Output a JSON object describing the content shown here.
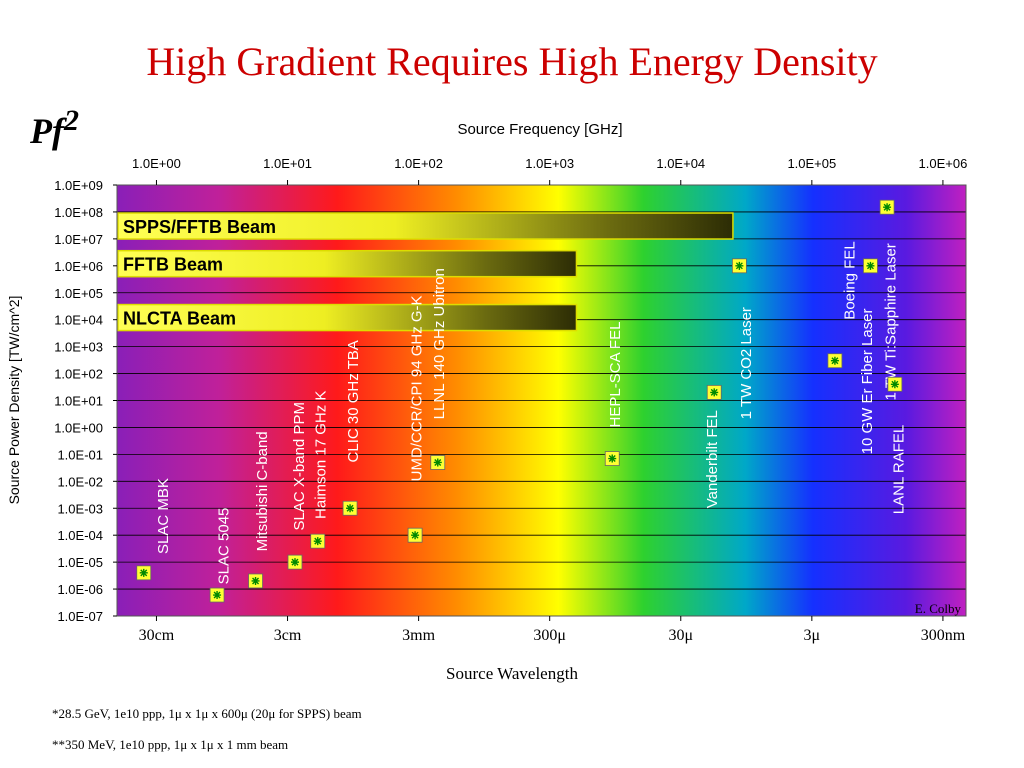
{
  "slide": {
    "title": "High Gradient Requires High Energy Density",
    "pf2": "Pf",
    "pf2_sup": "2",
    "footnote1": "*28.5 GeV, 1e10 ppp, 1μ x 1μ x 600μ (20μ for SPPS) beam",
    "footnote2": "**350 MeV, 1e10 ppp, 1μ x 1μ x 1 mm beam",
    "credit": "E. Colby"
  },
  "chart_data": {
    "type": "scatter",
    "title": "",
    "x_top_label": "Source Frequency [GHz]",
    "x_bottom_label": "Source Wavelength",
    "ylabel": "Source Power Density [TW/cm^2]",
    "x_scale": "log",
    "y_scale": "log",
    "xlim": [
      0.5,
      1500000
    ],
    "ylim": [
      1e-07,
      1000000000.0
    ],
    "grid": "horizontal",
    "background": "spectrum gradient purple-red-yellow-green-blue-purple",
    "top_ticks": [
      {
        "value": 1,
        "label": "1.0E+00"
      },
      {
        "value": 10,
        "label": "1.0E+01"
      },
      {
        "value": 100,
        "label": "1.0E+02"
      },
      {
        "value": 1000,
        "label": "1.0E+03"
      },
      {
        "value": 10000,
        "label": "1.0E+04"
      },
      {
        "value": 100000,
        "label": "1.0E+05"
      },
      {
        "value": 1000000,
        "label": "1.0E+06"
      }
    ],
    "bottom_ticks": [
      {
        "value": 1,
        "label": "30cm"
      },
      {
        "value": 10,
        "label": "3cm"
      },
      {
        "value": 100,
        "label": "3mm"
      },
      {
        "value": 1000,
        "label": "300μ"
      },
      {
        "value": 10000,
        "label": "30μ"
      },
      {
        "value": 100000,
        "label": "3μ"
      },
      {
        "value": 1000000,
        "label": "300nm"
      }
    ],
    "y_ticks": [
      {
        "value": 1000000000.0,
        "label": "1.0E+09"
      },
      {
        "value": 100000000.0,
        "label": "1.0E+08"
      },
      {
        "value": 10000000.0,
        "label": "1.0E+07"
      },
      {
        "value": 1000000.0,
        "label": "1.0E+06"
      },
      {
        "value": 100000.0,
        "label": "1.0E+05"
      },
      {
        "value": 10000.0,
        "label": "1.0E+04"
      },
      {
        "value": 1000.0,
        "label": "1.0E+03"
      },
      {
        "value": 100.0,
        "label": "1.0E+02"
      },
      {
        "value": 10.0,
        "label": "1.0E+01"
      },
      {
        "value": 1.0,
        "label": "1.0E+00"
      },
      {
        "value": 0.1,
        "label": "1.0E-01"
      },
      {
        "value": 0.01,
        "label": "1.0E-02"
      },
      {
        "value": 0.001,
        "label": "1.0E-03"
      },
      {
        "value": 0.0001,
        "label": "1.0E-04"
      },
      {
        "value": 1e-05,
        "label": "1.0E-05"
      },
      {
        "value": 1e-06,
        "label": "1.0E-06"
      },
      {
        "value": 1e-07,
        "label": "1.0E-07"
      }
    ],
    "beams": [
      {
        "label": "SPPS/FFTB Beam",
        "x_end": 25000,
        "y": 30000000.0
      },
      {
        "label": "FFTB Beam",
        "x_end": 1600,
        "y": 1200000.0
      },
      {
        "label": "NLCTA Beam",
        "x_end": 1600,
        "y": 12000.0
      }
    ],
    "points": [
      {
        "label": "SLAC MBK",
        "x": 0.8,
        "y": 4e-06
      },
      {
        "label": "SLAC 5045",
        "x": 2.9,
        "y": 6e-07
      },
      {
        "label": "Mitsubishi C-band",
        "x": 5.7,
        "y": 2e-06
      },
      {
        "label": "SLAC X-band PPM",
        "x": 11.4,
        "y": 1e-05
      },
      {
        "label": "Haimson 17 GHz K",
        "x": 17,
        "y": 6e-05
      },
      {
        "label": "CLIC 30 GHz TBA",
        "x": 30,
        "y": 0.001
      },
      {
        "label": "UMD/CCR/CPI 94 GHz G-K",
        "x": 94,
        "y": 0.0001
      },
      {
        "label": "LLNL 140 GHz Ubitron",
        "x": 140,
        "y": 0.05
      },
      {
        "label": "HEPL-SCA FEL",
        "x": 3000,
        "y": 0.07
      },
      {
        "label": "Vanderbilt FEL",
        "x": 18000,
        "y": 20.0
      },
      {
        "label": "1 TW CO2 Laser",
        "x": 28000,
        "y": 1000000.0
      },
      {
        "label": "Boeing FEL",
        "x": 150000,
        "y": 300.0
      },
      {
        "label": "10 GW Er Fiber Laser",
        "x": 280000,
        "y": 1000000.0
      },
      {
        "label": "1 TW Ti:Sapphire Laser",
        "x": 375000,
        "y": 150000000.0
      },
      {
        "label": "LANL RAFEL",
        "x": 430000,
        "y": 40.0
      }
    ],
    "annotations": [
      {
        "label": "SLAC MBK",
        "x": 1.1,
        "y_base": 2e-05
      },
      {
        "label": "SLAC 5045",
        "x": 3.2,
        "y_base": 1.5e-06
      },
      {
        "label": "Mitsubishi C-band",
        "x": 6.3,
        "y_base": 2.5e-05
      },
      {
        "label": "SLAC X-band PPM",
        "x": 12,
        "y_base": 0.00015
      },
      {
        "label": "Haimson 17 GHz K",
        "x": 17.5,
        "y_base": 0.0004
      },
      {
        "label": "CLIC 30 GHz TBA",
        "x": 31,
        "y_base": 0.05
      },
      {
        "label": "UMD/CCR/CPI 94 GHz G-K",
        "x": 95,
        "y_base": 0.01
      },
      {
        "label": "LLNL 140 GHz Ubitron",
        "x": 140,
        "y_base": 2.0
      },
      {
        "label": "HEPL-SCA FEL",
        "x": 3100,
        "y_base": 1.0
      },
      {
        "label": "Vanderbilt FEL",
        "x": 17000,
        "y_base": 0.001
      },
      {
        "label": "1 TW CO2 Laser",
        "x": 31000,
        "y_base": 2.0
      },
      {
        "label": "Boeing FEL",
        "x": 190000,
        "y_base": 10000.0
      },
      {
        "label": "10 GW Er Fiber Laser",
        "x": 260000,
        "y_base": 0.1
      },
      {
        "label": "1 TW Ti:Sapphire Laser",
        "x": 390000,
        "y_base": 10.0
      },
      {
        "label": "LANL RAFEL",
        "x": 450000,
        "y_base": 0.0006
      }
    ]
  }
}
